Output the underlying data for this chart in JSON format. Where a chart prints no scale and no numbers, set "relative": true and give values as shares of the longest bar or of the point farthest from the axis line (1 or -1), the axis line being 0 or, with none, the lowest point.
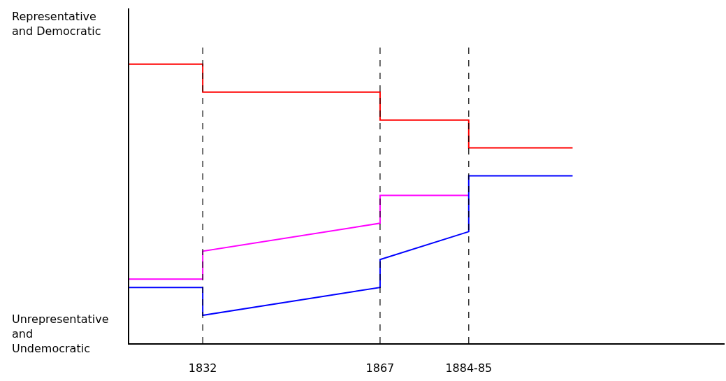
{
  "chart_data": {
    "type": "line",
    "relative": true,
    "annotations": [
      "Representative and Democratic",
      "Unrepresentative and Undemocratic"
    ],
    "xlim": [
      1817.5,
      1935
    ],
    "xticks": [
      1832,
      1867,
      {
        "value": 1884.5,
        "label": "1884-85"
      }
    ],
    "series": [
      {
        "color": "#ff0000",
        "x": [
          1817.5,
          1832,
          1832,
          1867,
          1867,
          1884.5,
          1884.5,
          1905
        ],
        "values": [
          1.0,
          1.0,
          0.9,
          0.9,
          0.8,
          0.8,
          0.7,
          0.7
        ]
      },
      {
        "color": "#ff00ff",
        "x": [
          1817.5,
          1832,
          1832,
          1867,
          1867,
          1884.5
        ],
        "values": [
          0.23,
          0.23,
          0.33,
          0.43,
          0.53,
          0.53
        ]
      },
      {
        "color": "#0000ff",
        "x": [
          1817.5,
          1832,
          1832,
          1867,
          1867,
          1884.5,
          1884.5,
          1905
        ],
        "values": [
          0.2,
          0.2,
          0.1,
          0.2,
          0.3,
          0.4,
          0.6,
          0.6
        ]
      }
    ],
    "ref_lines": [
      {
        "axis": "x",
        "value": 1832,
        "color": "#000000",
        "line_style": "dashed"
      },
      {
        "axis": "x",
        "value": 1867,
        "color": "#000000",
        "line_style": "dashed"
      },
      {
        "axis": "x",
        "value": 1884.5,
        "color": "#000000",
        "line_style": "dashed"
      }
    ],
    "marker": "none",
    "line_style": "solid"
  }
}
